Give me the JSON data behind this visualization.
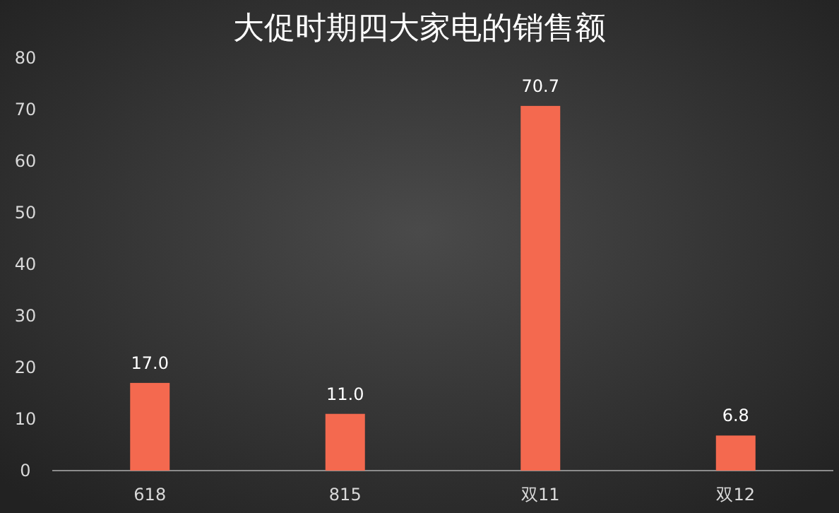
{
  "chart_data": {
    "type": "bar",
    "title": "大促时期四大家电的销售额",
    "categories": [
      "618",
      "815",
      "双11",
      "双12"
    ],
    "values": [
      17.0,
      11.0,
      70.7,
      6.8
    ],
    "value_labels": [
      "17.0",
      "11.0",
      "70.7",
      "6.8"
    ],
    "color": "#f4694f",
    "ylim": [
      0,
      80
    ],
    "yticks": [
      0,
      10,
      20,
      30,
      40,
      50,
      60,
      70,
      80
    ]
  }
}
